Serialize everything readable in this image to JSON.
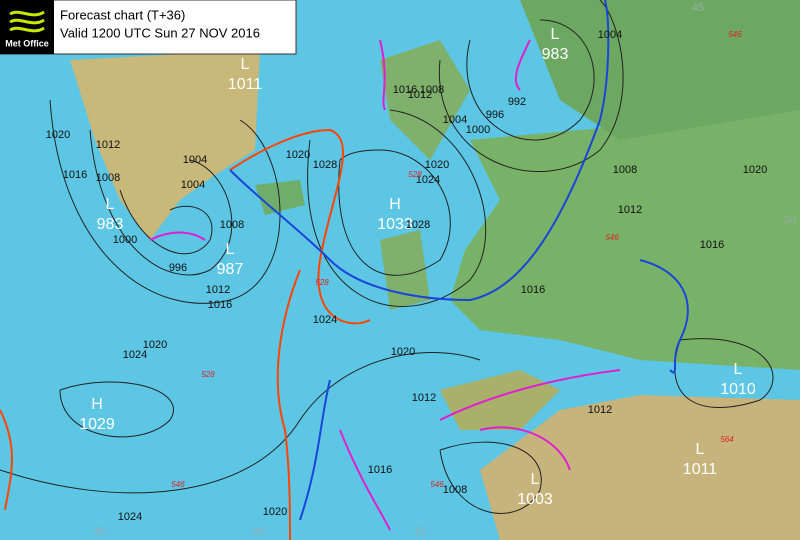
{
  "header": {
    "logo": "Met Office",
    "title": "Forecast chart (T+36)",
    "valid": "Valid 1200 UTC Sun 27 NOV 2016"
  },
  "centers": [
    {
      "kind": "L",
      "value": 1011
    },
    {
      "kind": "L",
      "value": 983
    },
    {
      "kind": "L",
      "value": 983
    },
    {
      "kind": "L",
      "value": 987
    },
    {
      "kind": "H",
      "value": 1033
    },
    {
      "kind": "H",
      "value": 1029
    },
    {
      "kind": "L",
      "value": 1010
    },
    {
      "kind": "L",
      "value": 1003
    },
    {
      "kind": "L",
      "value": 1011
    }
  ],
  "isobar_labels": [
    1020,
    1016,
    1012,
    1008,
    1004,
    1000,
    996,
    1004,
    1008,
    1012,
    1016,
    1020,
    1028,
    1024,
    1020,
    1024,
    1028,
    1024,
    1020,
    1016,
    1012,
    1008,
    1004,
    1000,
    996,
    992,
    1004,
    1008,
    1012,
    1016,
    1020,
    1016,
    1020,
    1012,
    1008,
    1016,
    1012,
    1024,
    1020
  ],
  "thickness_labels": [
    546,
    528,
    546,
    528,
    528,
    546,
    564,
    546
  ],
  "grid_labels": [
    45,
    30,
    45,
    30,
    15
  ]
}
